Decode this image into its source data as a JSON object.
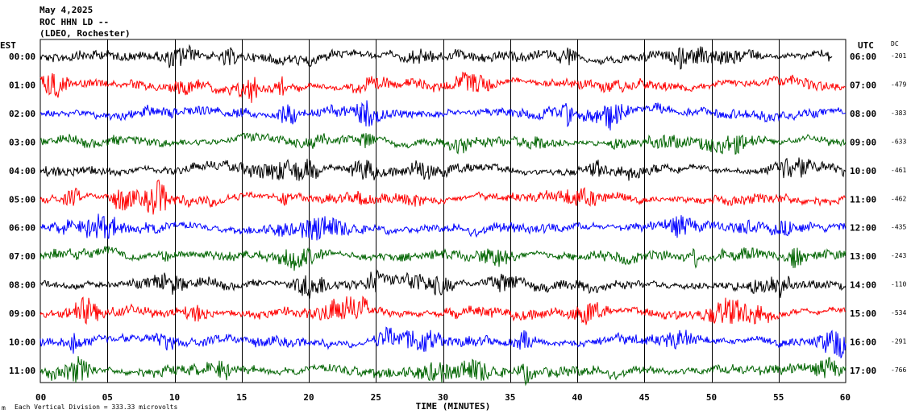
{
  "header": {
    "line1": "May 4,2025",
    "line2": "ROC HHN LD --",
    "line3": "(LDEO, Rochester)"
  },
  "left_axis_label": "EST",
  "right_axis_label": "UTC",
  "dc_label": "DC",
  "footer": {
    "vertical_division": "Each Vertical Division =  333.33 microvolts",
    "mark": "m"
  },
  "colors": {
    "black": "#000000",
    "red": "#ff0000",
    "blue": "#0000ff",
    "green": "#006400",
    "grid": "#000000"
  },
  "chart_data": {
    "type": "line",
    "xlabel": "TIME (MINUTES)",
    "xlim": [
      0,
      60
    ],
    "x_ticks": [
      "00",
      "05",
      "10",
      "15",
      "20",
      "25",
      "30",
      "35",
      "40",
      "45",
      "50",
      "55",
      "60"
    ],
    "grid": true,
    "rows": [
      {
        "est": "00:00",
        "utc": "06:00",
        "dc": "-201",
        "color": "black"
      },
      {
        "est": "01:00",
        "utc": "07:00",
        "dc": "-479",
        "color": "red"
      },
      {
        "est": "02:00",
        "utc": "08:00",
        "dc": "-383",
        "color": "blue"
      },
      {
        "est": "03:00",
        "utc": "09:00",
        "dc": "-633",
        "color": "green"
      },
      {
        "est": "04:00",
        "utc": "10:00",
        "dc": "-461",
        "color": "black"
      },
      {
        "est": "05:00",
        "utc": "11:00",
        "dc": "-462",
        "color": "red"
      },
      {
        "est": "06:00",
        "utc": "12:00",
        "dc": "-435",
        "color": "blue"
      },
      {
        "est": "07:00",
        "utc": "13:00",
        "dc": "-243",
        "color": "green"
      },
      {
        "est": "08:00",
        "utc": "14:00",
        "dc": "-110",
        "color": "black"
      },
      {
        "est": "09:00",
        "utc": "15:00",
        "dc": "-534",
        "color": "red"
      },
      {
        "est": "10:00",
        "utc": "16:00",
        "dc": "-291",
        "color": "blue"
      },
      {
        "est": "11:00",
        "utc": "17:00",
        "dc": "-766",
        "color": "green"
      }
    ]
  }
}
